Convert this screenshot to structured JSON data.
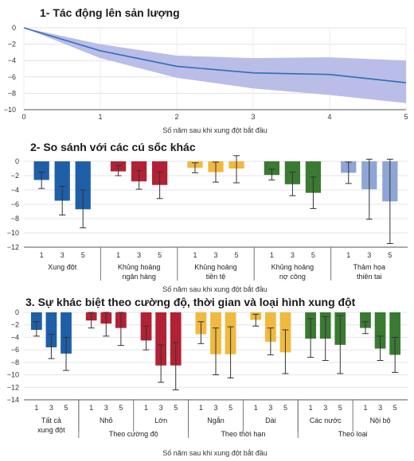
{
  "chart_data": [
    {
      "type": "line",
      "title": "1- Tác động lên sản lượng",
      "xlabel": "Số năm sau khi xung đột bắt đầu",
      "ylabel": "",
      "x": [
        0,
        1,
        2,
        3,
        4,
        5
      ],
      "xlim": [
        0,
        5
      ],
      "ylim": [
        -10,
        0
      ],
      "yticks": [
        0,
        -2,
        -4,
        -6,
        -8,
        -10
      ],
      "series": [
        {
          "values": [
            0,
            -2.8,
            -4.7,
            -5.5,
            -5.7,
            -6.7
          ],
          "lower": [
            0,
            -3.7,
            -6.1,
            -7.4,
            -8.2,
            -9.2
          ],
          "upper": [
            0,
            -2.0,
            -3.4,
            -3.7,
            -3.6,
            -4.0
          ],
          "color": "#2f6db5",
          "band_color": "#b9bde8"
        }
      ],
      "grid": true
    },
    {
      "type": "bar",
      "title": "2- So sánh với các cú sốc khác",
      "xlabel": "Số năm sau khi xung đột bắt đầu",
      "ylabel": "",
      "ylim": [
        -12,
        0
      ],
      "yticks": [
        0,
        -2,
        -4,
        -6,
        -8,
        -10,
        -12
      ],
      "bar_years": [
        "1",
        "3",
        "5"
      ],
      "groups": [
        {
          "label": "Xung đột",
          "color": "#1f5fa8",
          "values": [
            -2.6,
            -5.5,
            -6.7
          ],
          "err_low": [
            -3.8,
            -7.5,
            -9.3
          ],
          "err_high": [
            -1.5,
            -3.5,
            -4.0
          ]
        },
        {
          "label": "Khủng hoảng ngân hàng",
          "color": "#b22234",
          "values": [
            -1.4,
            -2.8,
            -3.3
          ],
          "err_low": [
            -2.0,
            -3.9,
            -5.2
          ],
          "err_high": [
            -0.6,
            -1.3,
            -1.5
          ]
        },
        {
          "label": "Khủng hoảng tiền tệ",
          "color": "#f0b93f",
          "values": [
            -0.9,
            -1.5,
            -1.0
          ],
          "err_low": [
            -1.6,
            -2.9,
            -3.0
          ],
          "err_high": [
            -0.2,
            -0.1,
            0.8
          ]
        },
        {
          "label": "Khủng hoảng nợ công",
          "color": "#3a7a32",
          "values": [
            -1.9,
            -3.2,
            -4.4
          ],
          "err_low": [
            -2.6,
            -4.8,
            -6.6
          ],
          "err_high": [
            -1.1,
            -1.5,
            -2.2
          ]
        },
        {
          "label": "Thảm họa thiên tai",
          "color": "#8ea6d6",
          "values": [
            -1.6,
            -3.9,
            -5.6
          ],
          "err_low": [
            -3.1,
            -8.1,
            -11.5
          ],
          "err_high": [
            -0.1,
            0.3,
            0.3
          ]
        }
      ],
      "grid": true
    },
    {
      "type": "bar",
      "title": "3. Sự khác biệt theo cường độ, thời gian và loại hình xung đột",
      "xlabel": "Số năm sau khi xung đột bắt đầu",
      "ylabel": "",
      "ylim": [
        -14,
        0
      ],
      "yticks": [
        0,
        -2,
        -4,
        -6,
        -8,
        -10,
        -12,
        -14
      ],
      "bar_years": [
        "1",
        "3",
        "5"
      ],
      "groups": [
        {
          "label": "Tất cả xung đột",
          "color": "#1f5fa8",
          "values": [
            -2.8,
            -5.6,
            -6.6
          ],
          "err_low": [
            -3.8,
            -7.4,
            -9.3
          ],
          "err_high": [
            -1.5,
            -3.5,
            -4.0
          ]
        },
        {
          "label": "Nhỏ",
          "color": "#b22234",
          "values": [
            -1.3,
            -1.8,
            -2.5
          ],
          "err_low": [
            -2.5,
            -3.8,
            -5.3
          ],
          "err_high": [
            0,
            0,
            0
          ]
        },
        {
          "label": "Lớn",
          "color": "#b22234",
          "values": [
            -4.5,
            -8.5,
            -8.5
          ],
          "err_low": [
            -6.0,
            -11.2,
            -12.4
          ],
          "err_high": [
            -2.2,
            -5.2,
            -4.8
          ]
        },
        {
          "label": "Ngắn",
          "color": "#f0b93f",
          "values": [
            -3.5,
            -6.7,
            -6.7
          ],
          "err_low": [
            -5.0,
            -10.0,
            -10.5
          ],
          "err_high": [
            -1.5,
            -2.5,
            -2.3
          ]
        },
        {
          "label": "Dài",
          "color": "#f0b93f",
          "values": [
            -1.2,
            -4.7,
            -6.4
          ],
          "err_low": [
            -2.2,
            -6.8,
            -9.8
          ],
          "err_high": [
            -0.3,
            -2.5,
            -2.8
          ]
        },
        {
          "label": "Các nước",
          "color": "#3a7a32",
          "values": [
            -4.2,
            -4.2,
            -5.2
          ],
          "err_low": [
            -7.2,
            -7.7,
            -9.8
          ],
          "err_high": [
            -1.0,
            -0.7,
            -0.5
          ]
        },
        {
          "label": "Nội bộ",
          "color": "#3a7a32",
          "values": [
            -2.5,
            -5.8,
            -6.8
          ],
          "err_low": [
            -3.4,
            -7.7,
            -9.6
          ],
          "err_high": [
            -1.5,
            -3.8,
            -4.0
          ]
        }
      ],
      "categories_l2": [
        "Theo cường độ",
        "Theo thời hạn",
        "Theo loại"
      ],
      "grid": true
    }
  ]
}
